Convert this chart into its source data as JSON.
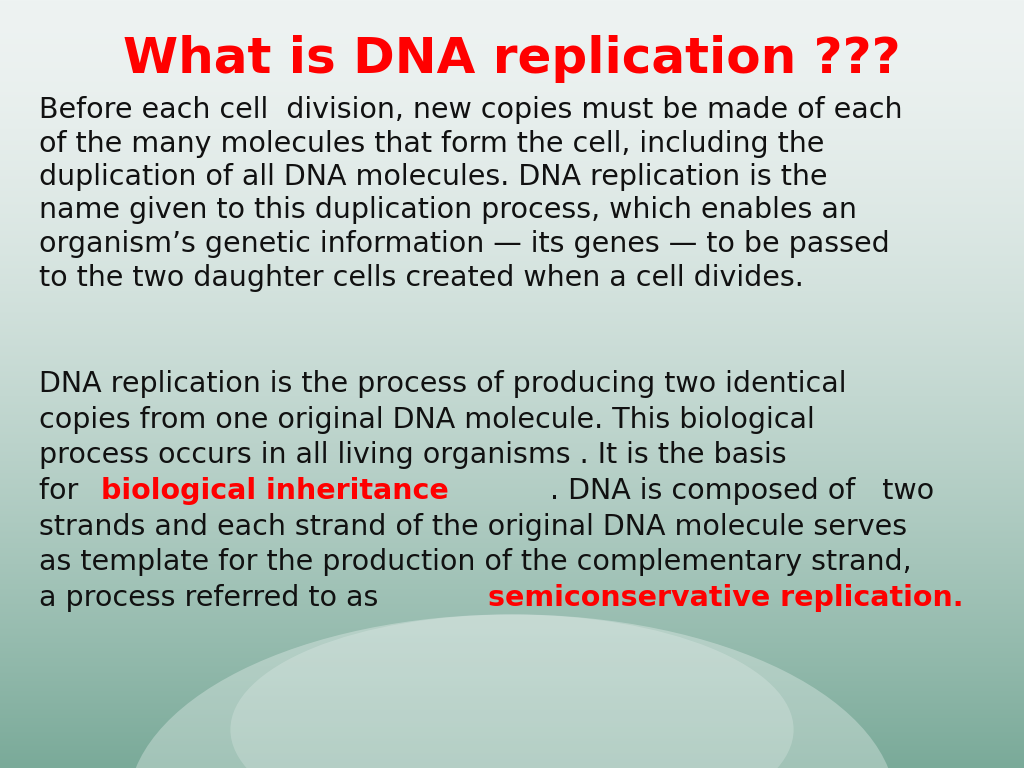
{
  "title": "What is DNA replication ???",
  "title_color": "#ff0000",
  "title_fontsize": 36,
  "body_fontsize": 20.5,
  "body_color": "#111111",
  "red_color": "#ff0000",
  "bg_top_color": "#eef3f2",
  "bg_bottom_color": "#7aaa99",
  "paragraph1": "Before each cell  division, new copies must be made of each\nof the many molecules that form the cell, including the\nduplication of all DNA molecules. DNA replication is the\nname given to this duplication process, which enables an\norganism’s genetic information — its genes — to be passed\nto the two daughter cells created when a cell divides.",
  "p2_lines": [
    [
      {
        "text": "DNA replication is the process of producing two identical",
        "color": "#111111",
        "bold": false
      }
    ],
    [
      {
        "text": "copies from one original DNA molecule. This biological",
        "color": "#111111",
        "bold": false
      }
    ],
    [
      {
        "text": "process occurs in all living organisms . It is the basis",
        "color": "#111111",
        "bold": false
      }
    ],
    [
      {
        "text": "for ",
        "color": "#111111",
        "bold": false
      },
      {
        "text": "biological inheritance",
        "color": "#ff0000",
        "bold": true
      },
      {
        "text": ". DNA is composed of   two",
        "color": "#111111",
        "bold": false
      }
    ],
    [
      {
        "text": "strands and each strand of the original DNA molecule serves",
        "color": "#111111",
        "bold": false
      }
    ],
    [
      {
        "text": "as template for the production of the complementary strand,",
        "color": "#111111",
        "bold": false
      }
    ],
    [
      {
        "text": "a process referred to as ",
        "color": "#111111",
        "bold": false
      },
      {
        "text": "semiconservative replication.",
        "color": "#ff0000",
        "bold": true
      }
    ]
  ]
}
